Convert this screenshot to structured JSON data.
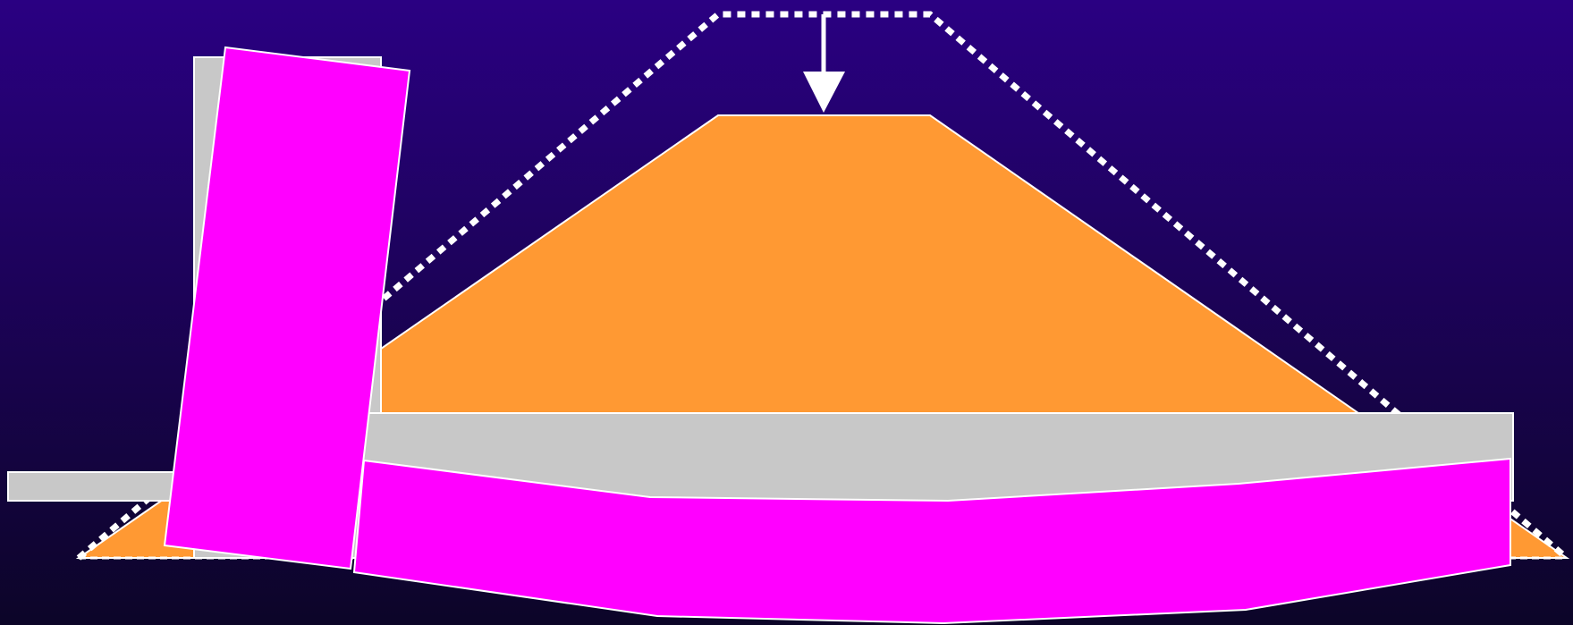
{
  "colors": {
    "background_top": "#2a0082",
    "background_bottom": "#0c0528",
    "embankment_fill": "#ff9933",
    "wall_fill": "#ff00ff",
    "slab_fill": "#c8c8c8",
    "outline": "#ffffff",
    "dotted_outline": "#ffffff"
  },
  "elements": {
    "original_fill_outline": "dotted-outline",
    "settlement_arrow": "arrow-down-icon",
    "settled_embankment": "trapezoid",
    "original_wall": "rectangle",
    "original_base_slab": "rectangle",
    "tilted_wall": "rectangle",
    "deflected_base_slab": "polygon"
  }
}
